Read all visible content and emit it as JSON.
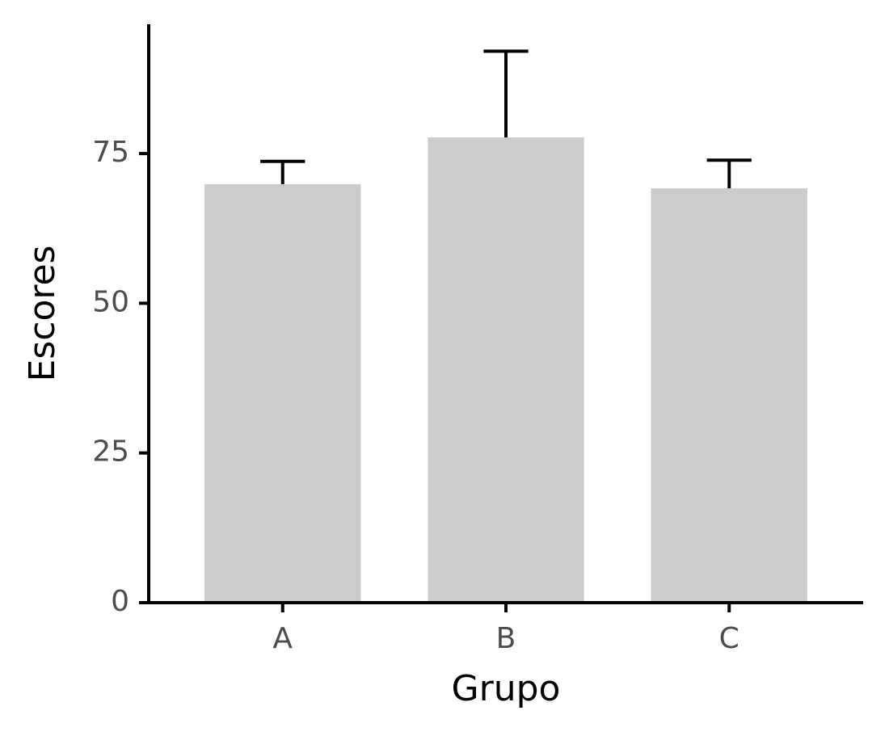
{
  "chart_data": {
    "type": "bar",
    "x_label": "Grupo",
    "y_label": "Escores",
    "categories": [
      "A",
      "B",
      "C"
    ],
    "values": [
      69.9,
      77.7,
      69.2
    ],
    "errors": [
      3.8,
      14.4,
      4.7
    ],
    "color": "#cccccc",
    "ylim": [
      0,
      96.6
    ],
    "yticks": [
      0,
      25,
      50,
      75
    ],
    "grid": false
  }
}
